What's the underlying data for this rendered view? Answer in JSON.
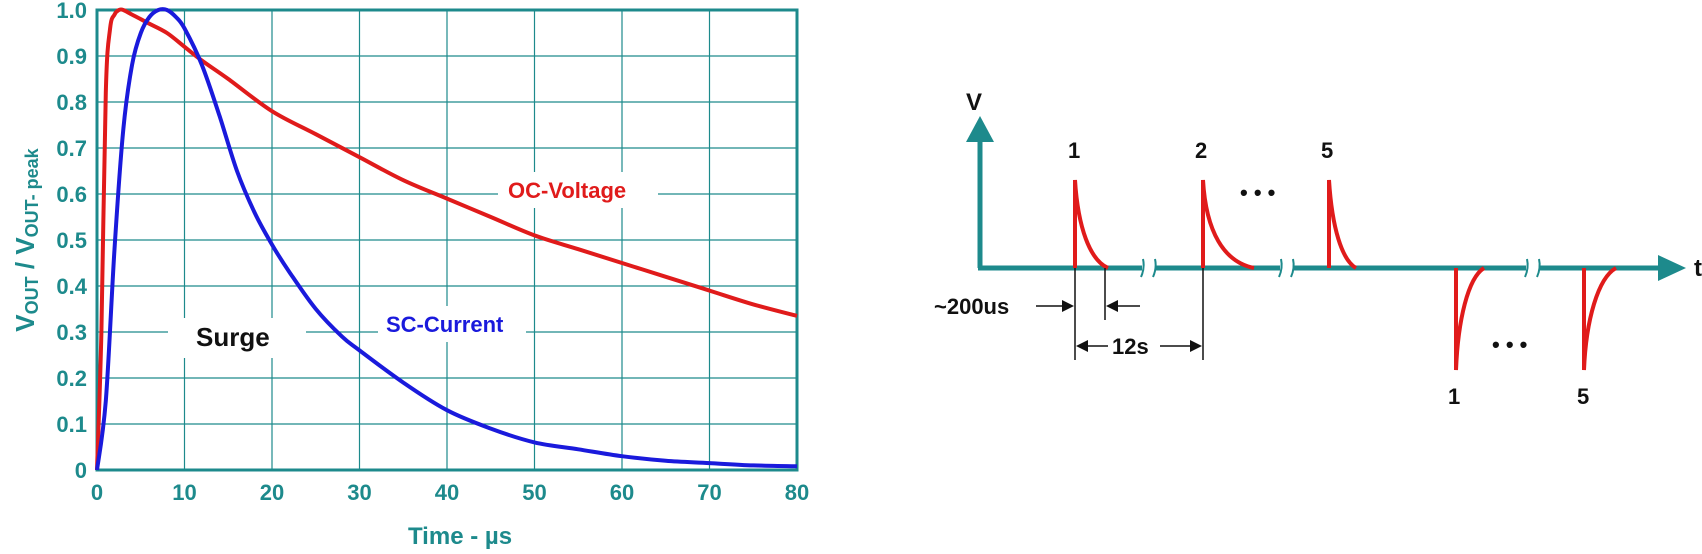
{
  "colors": {
    "axis": "#1d8a8c",
    "grid": "#1d8a8c",
    "voltage": "#e01b1b",
    "current": "#1a1adc",
    "text": "#111111"
  },
  "chart_data": [
    {
      "type": "line",
      "title": "",
      "xlabel": "Time - µs",
      "ylabel_parts": [
        "V",
        "OUT",
        " / V",
        "OUT- peak"
      ],
      "xlim": [
        0,
        80
      ],
      "ylim": [
        0,
        1.0
      ],
      "grid": true,
      "x_ticks": [
        "0",
        "10",
        "20",
        "30",
        "40",
        "50",
        "60",
        "70",
        "80"
      ],
      "y_ticks": [
        "0",
        "0.1",
        "0.2",
        "0.3",
        "0.4",
        "0.5",
        "0.6",
        "0.7",
        "0.8",
        "0.9",
        "1.0"
      ],
      "series": [
        {
          "name": "OC-Voltage",
          "x": [
            0,
            0.5,
            1,
            1.5,
            2,
            2.5,
            3,
            4,
            5,
            6,
            8,
            10,
            12,
            15,
            20,
            25,
            30,
            35,
            40,
            45,
            50,
            55,
            60,
            65,
            70,
            75,
            80
          ],
          "y": [
            0,
            0.3,
            0.82,
            0.96,
            0.99,
            1.0,
            1.0,
            0.99,
            0.98,
            0.97,
            0.95,
            0.92,
            0.89,
            0.85,
            0.78,
            0.73,
            0.68,
            0.63,
            0.59,
            0.55,
            0.51,
            0.48,
            0.45,
            0.42,
            0.39,
            0.36,
            0.335
          ]
        },
        {
          "name": "SC-Current",
          "x": [
            0,
            1,
            2,
            3,
            4,
            5,
            6,
            7,
            8,
            9,
            10,
            12,
            14,
            16,
            18,
            20,
            22,
            25,
            28,
            30,
            35,
            40,
            45,
            50,
            55,
            60,
            65,
            70,
            75,
            80
          ],
          "y": [
            0,
            0.15,
            0.48,
            0.74,
            0.88,
            0.95,
            0.985,
            1.0,
            1.0,
            0.985,
            0.96,
            0.88,
            0.77,
            0.65,
            0.56,
            0.49,
            0.43,
            0.35,
            0.29,
            0.26,
            0.19,
            0.13,
            0.09,
            0.06,
            0.045,
            0.03,
            0.02,
            0.015,
            0.01,
            0.008
          ]
        }
      ],
      "annotations": [
        {
          "text": "OC-Voltage",
          "series": "OC-Voltage",
          "x": 47,
          "y": 0.61
        },
        {
          "text": "SC-Current",
          "series": "SC-Current",
          "x": 34,
          "y": 0.31
        },
        {
          "text": "Surge",
          "x": 16,
          "y": 0.29
        }
      ]
    },
    {
      "type": "diagram",
      "y_axis_label": "V",
      "x_axis_label": "t",
      "positive_pulse_labels": [
        "1",
        "2",
        "5"
      ],
      "negative_pulse_labels": [
        "1",
        "5"
      ],
      "ellipsis_top": "• • •",
      "ellipsis_bottom": "• • •",
      "pulse_width_label": "~200us",
      "period_label": "12s"
    }
  ]
}
